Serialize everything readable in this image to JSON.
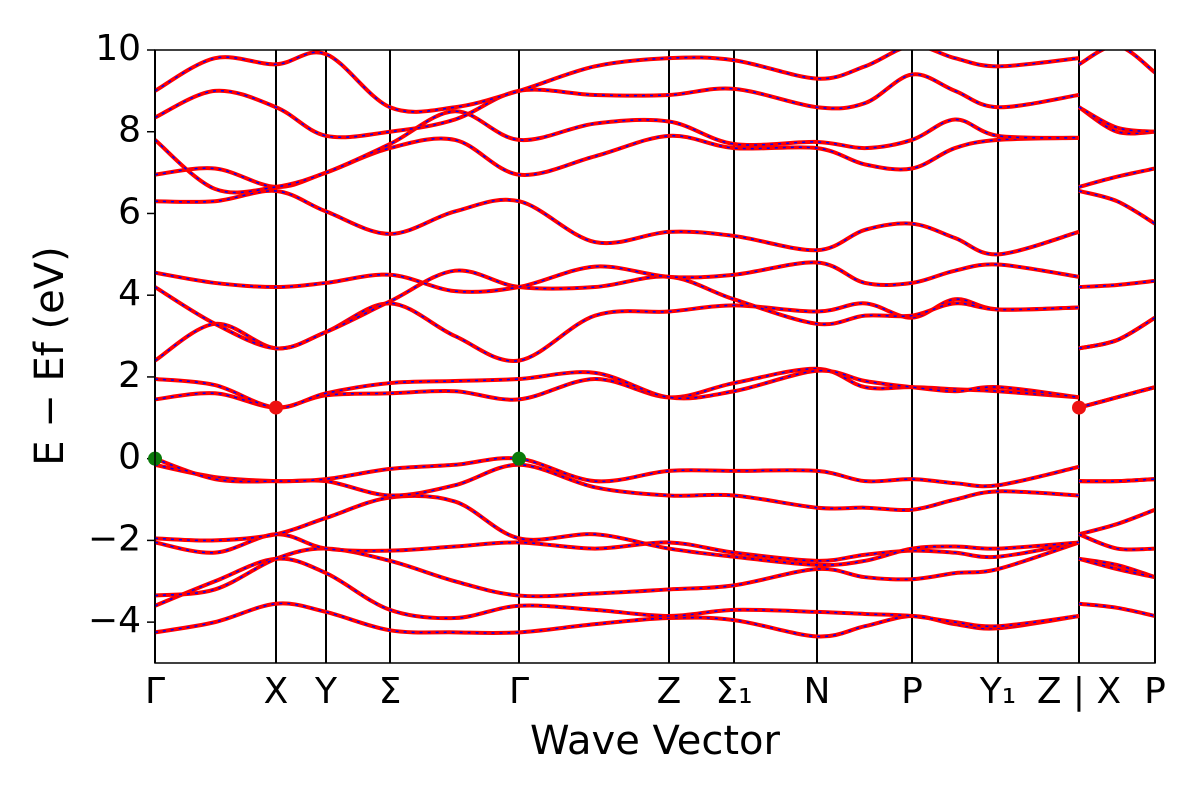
{
  "chart_data": {
    "type": "line",
    "xlabel": "Wave Vector",
    "ylabel": "E − Ef (eV)",
    "x": [
      0,
      60,
      121,
      171,
      235,
      300,
      364,
      440,
      514,
      579,
      662,
      710,
      757,
      800,
      843,
      924,
      924,
      924,
      962,
      1000
    ],
    "xlim": [
      0,
      1000
    ],
    "xticks": [
      {
        "value": 0,
        "label": "Γ"
      },
      {
        "value": 121,
        "label": "X"
      },
      {
        "value": 171,
        "label": "Y"
      },
      {
        "value": 235,
        "label": "Σ"
      },
      {
        "value": 364,
        "label": "Γ"
      },
      {
        "value": 514,
        "label": "Z"
      },
      {
        "value": 579,
        "label": "Σ₁"
      },
      {
        "value": 662,
        "label": "N"
      },
      {
        "value": 757,
        "label": "P"
      },
      {
        "value": 843,
        "label": "Y₁"
      },
      {
        "value": 924,
        "label": "Z | X"
      },
      {
        "value": 1000,
        "label": "P"
      }
    ],
    "ylim": [
      -5,
      10
    ],
    "yticks": [
      {
        "value": -4,
        "label": "−4"
      },
      {
        "value": -2,
        "label": "−2"
      },
      0,
      2,
      4,
      6,
      8,
      10
    ],
    "dash_color": "#0000ff",
    "series": [
      {
        "color": "#ff0000",
        "values": [
          -4.25,
          -4.0,
          -3.55,
          -3.75,
          -4.2,
          -4.25,
          -4.25,
          -4.05,
          -3.9,
          -3.95,
          -4.35,
          -4.1,
          -3.85,
          -4.05,
          -4.15,
          -3.85,
          null,
          -3.55,
          -3.65,
          -3.85
        ]
      },
      {
        "color": "#ff0000",
        "values": [
          -3.6,
          -3.0,
          -2.45,
          -2.8,
          -3.7,
          -3.9,
          -3.6,
          -3.7,
          -3.85,
          -3.7,
          -3.75,
          -3.8,
          -3.85,
          -4.0,
          -4.1,
          -3.85,
          null,
          -2.45,
          -2.6,
          -2.9
        ]
      },
      {
        "color": "#ff0000",
        "values": [
          -3.35,
          -3.2,
          -2.45,
          -2.2,
          -2.5,
          -3.0,
          -3.35,
          -3.3,
          -3.2,
          -3.1,
          -2.7,
          -2.9,
          -2.95,
          -2.8,
          -2.7,
          -2.05,
          null,
          -2.45,
          -2.7,
          -2.9
        ]
      },
      {
        "color": "#ff0000",
        "values": [
          -2.05,
          -2.3,
          -1.85,
          -2.2,
          -2.25,
          -2.15,
          -2.05,
          -2.2,
          -2.05,
          -2.3,
          -2.5,
          -2.35,
          -2.25,
          -2.3,
          -2.4,
          -2.05,
          null,
          -1.85,
          -1.6,
          -1.25
        ]
      },
      {
        "color": "#ff0000",
        "values": [
          -1.95,
          -2.0,
          -1.85,
          -1.45,
          -0.95,
          -1.05,
          -1.95,
          -1.85,
          -2.2,
          -2.4,
          -2.6,
          -2.5,
          -2.2,
          -2.15,
          -2.2,
          -2.05,
          null,
          -1.85,
          -2.2,
          -2.2
        ]
      },
      {
        "color": "#ff0000",
        "values": [
          -0.15,
          -0.45,
          -0.55,
          -0.55,
          -0.9,
          -0.65,
          -0.15,
          -0.7,
          -0.9,
          -0.9,
          -1.2,
          -1.2,
          -1.25,
          -1.0,
          -0.8,
          -0.9,
          null,
          -0.55,
          -0.55,
          -0.5
        ]
      },
      {
        "color": "#ff0000",
        "values": [
          0,
          -0.5,
          -0.55,
          -0.5,
          -0.25,
          -0.15,
          0,
          -0.55,
          -0.3,
          -0.3,
          -0.3,
          -0.55,
          -0.5,
          -0.6,
          -0.65,
          -0.2,
          null,
          -0.55,
          -0.55,
          -0.5
        ]
      },
      {
        "color": "#ff0000",
        "values": [
          1.45,
          1.6,
          1.25,
          1.55,
          1.6,
          1.65,
          1.45,
          1.95,
          1.5,
          1.85,
          2.2,
          1.75,
          1.75,
          1.7,
          1.65,
          1.5,
          null,
          1.25,
          1.5,
          1.75
        ]
      },
      {
        "color": "#ff0000",
        "values": [
          1.95,
          1.8,
          1.25,
          1.6,
          1.85,
          1.9,
          1.95,
          2.1,
          1.5,
          1.65,
          2.15,
          1.9,
          1.75,
          1.65,
          1.75,
          1.5,
          null,
          1.25,
          1.5,
          1.75
        ]
      },
      {
        "color": "#ff0000",
        "values": [
          2.4,
          3.3,
          2.7,
          3.1,
          3.8,
          3.0,
          2.4,
          3.5,
          3.6,
          3.75,
          3.6,
          3.8,
          3.45,
          3.9,
          3.65,
          3.7,
          null,
          2.7,
          2.9,
          3.45
        ]
      },
      {
        "color": "#ff0000",
        "values": [
          4.2,
          3.3,
          2.7,
          3.1,
          3.85,
          4.6,
          4.2,
          4.2,
          4.45,
          3.9,
          3.3,
          3.5,
          3.5,
          3.8,
          3.65,
          3.7,
          null,
          2.7,
          2.9,
          3.45
        ]
      },
      {
        "color": "#ff0000",
        "values": [
          4.55,
          4.3,
          4.2,
          4.3,
          4.5,
          4.1,
          4.2,
          4.7,
          4.45,
          4.5,
          4.8,
          4.3,
          4.3,
          4.6,
          4.75,
          4.45,
          null,
          4.2,
          4.25,
          4.35
        ]
      },
      {
        "color": "#ff0000",
        "values": [
          6.3,
          6.3,
          6.55,
          6.05,
          5.5,
          6.05,
          6.3,
          5.3,
          5.55,
          5.45,
          5.1,
          5.6,
          5.75,
          5.4,
          5.0,
          5.55,
          null,
          6.55,
          6.3,
          5.75
        ]
      },
      {
        "color": "#ff0000",
        "values": [
          6.95,
          7.1,
          6.65,
          7.0,
          7.6,
          7.8,
          6.95,
          7.4,
          7.9,
          7.6,
          7.6,
          7.2,
          7.1,
          7.6,
          7.8,
          7.85,
          null,
          6.65,
          6.9,
          7.1
        ]
      },
      {
        "color": "#ff0000",
        "values": [
          7.8,
          6.6,
          6.65,
          7.0,
          7.7,
          8.5,
          7.8,
          8.2,
          8.25,
          7.7,
          7.75,
          7.6,
          7.8,
          8.3,
          7.9,
          7.85,
          null,
          8.6,
          8.0,
          8.0
        ]
      },
      {
        "color": "#ff0000",
        "values": [
          8.35,
          9.0,
          8.6,
          7.9,
          8.0,
          8.3,
          9.0,
          8.9,
          8.9,
          9.05,
          8.6,
          8.7,
          9.4,
          9.0,
          8.6,
          8.9,
          null,
          8.6,
          8.1,
          8.0
        ]
      },
      {
        "color": "#ff0000",
        "values": [
          9.0,
          9.8,
          9.65,
          9.9,
          8.6,
          8.6,
          9.0,
          9.6,
          9.8,
          9.75,
          9.3,
          9.6,
          10.1,
          9.8,
          9.6,
          9.8,
          null,
          9.65,
          10.1,
          9.45
        ]
      }
    ],
    "points": [
      {
        "x": 0,
        "y": 0,
        "color": "#0a7a0a"
      },
      {
        "x": 364,
        "y": 0,
        "color": "#0a7a0a"
      },
      {
        "x": 121,
        "y": 1.25,
        "color": "#ee1111"
      },
      {
        "x": 924,
        "y": 1.25,
        "color": "#ee1111"
      }
    ]
  }
}
